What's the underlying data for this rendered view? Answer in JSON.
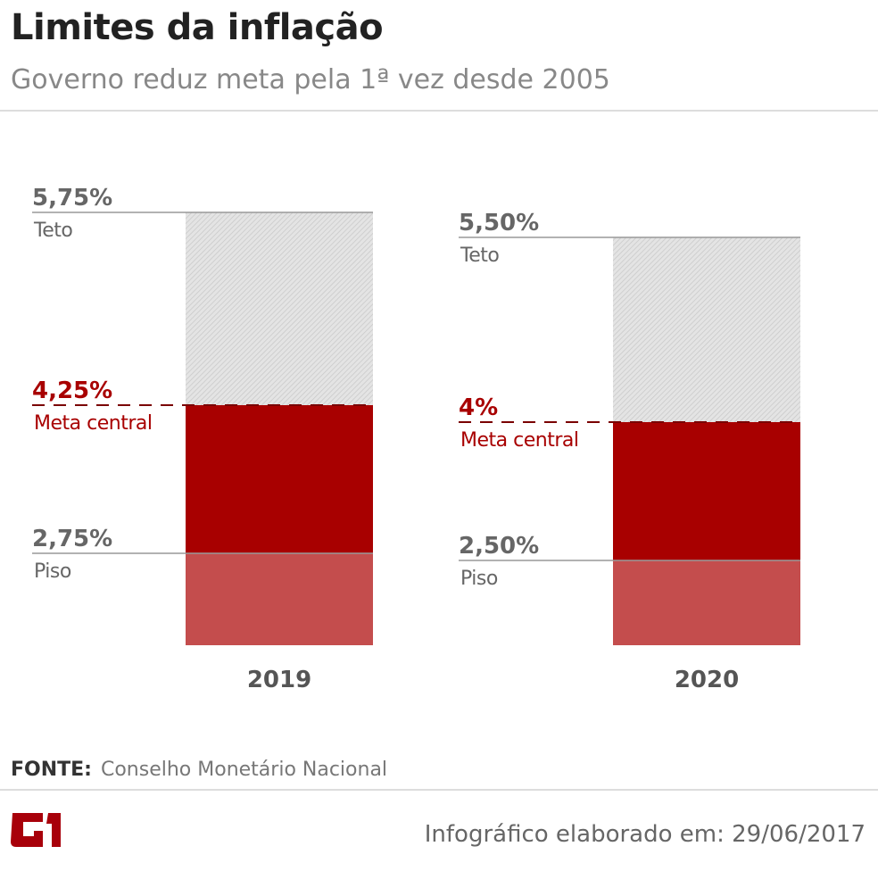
{
  "header": {
    "title": "Limites da inflação",
    "subtitle": "Governo reduz meta pela 1ª vez desde 2005"
  },
  "chart_data": {
    "type": "bar",
    "categories": [
      "2019",
      "2020"
    ],
    "series": [
      {
        "name": "Teto",
        "values": [
          5.75,
          5.5
        ],
        "labels": [
          "5,75%",
          "5,50%"
        ],
        "color": "#e0e0e0"
      },
      {
        "name": "Meta central",
        "values": [
          4.25,
          4
        ],
        "labels": [
          "4,25%",
          "4%"
        ],
        "color": "#a80000"
      },
      {
        "name": "Piso",
        "values": [
          2.75,
          2.5
        ],
        "labels": [
          "2,75%",
          "2,50%"
        ],
        "color": "#c44d4d"
      }
    ],
    "label_colors": {
      "Teto": "#666666",
      "Meta central": "#a80000",
      "Piso": "#666666"
    },
    "grid": false
  },
  "footer": {
    "source_label": "FONTE:",
    "source": "Conselho Monetário Nacional",
    "credit": "Infográfico elaborado em: 29/06/2017",
    "logo": "G1"
  }
}
